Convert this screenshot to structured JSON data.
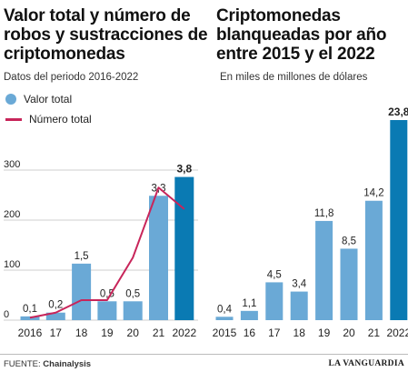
{
  "left": {
    "title": "Valor total y número de robos y sustracciones de criptomonedas",
    "subtitle": "Datos del periodo 2016-2022",
    "legend": [
      {
        "label": "Valor total",
        "color": "#6aa9d6",
        "kind": "dot"
      },
      {
        "label": "Número total",
        "color": "#c8255a",
        "kind": "line"
      }
    ]
  },
  "right": {
    "title": "Criptomonedas blanqueadas por año entre 2015 y el 2022",
    "subtitle": "En miles de millones de dólares"
  },
  "footer": {
    "source_label": "FUENTE:",
    "source_name": "Chainalysis",
    "brand": "LA VANGUARDIA"
  },
  "colors": {
    "bar": "#6aa9d6",
    "bar_highlight": "#0a7ab3",
    "line": "#c8255a",
    "axis_text": "#222222",
    "grid": "#cfcfcf"
  },
  "chart_data": [
    {
      "type": "bar",
      "title": "Valor total y número de robos y sustracciones de criptomonedas",
      "categories": [
        "2016",
        "17",
        "18",
        "19",
        "20",
        "21",
        "2022"
      ],
      "series": [
        {
          "name": "Valor total",
          "values": [
            0.1,
            0.2,
            1.5,
            0.5,
            0.5,
            3.3,
            3.8
          ],
          "labels": [
            "0,1",
            "0,2",
            "1,5",
            "0,5",
            "0,5",
            "3,3",
            "3,8"
          ]
        },
        {
          "name": "Número total",
          "type": "line",
          "values": [
            5,
            15,
            40,
            40,
            125,
            265,
            222
          ]
        }
      ],
      "secondary_axis_ticks": [
        "0",
        "100",
        "200",
        "300"
      ],
      "ylim_secondary": [
        0,
        300
      ],
      "ylim": [
        0,
        4.2
      ],
      "grid": true,
      "highlight_last": true
    },
    {
      "type": "bar",
      "title": "Criptomonedas blanqueadas por año entre 2015 y el 2022",
      "categories": [
        "2015",
        "16",
        "17",
        "18",
        "19",
        "20",
        "21",
        "2022"
      ],
      "values": [
        0.4,
        1.1,
        4.5,
        3.4,
        11.8,
        8.5,
        14.2,
        23.8
      ],
      "labels": [
        "0,4",
        "1,1",
        "4,5",
        "3,4",
        "11,8",
        "8,5",
        "14,2",
        "23,8"
      ],
      "ylim": [
        0,
        23.8
      ],
      "grid": false,
      "highlight_last": true
    }
  ]
}
